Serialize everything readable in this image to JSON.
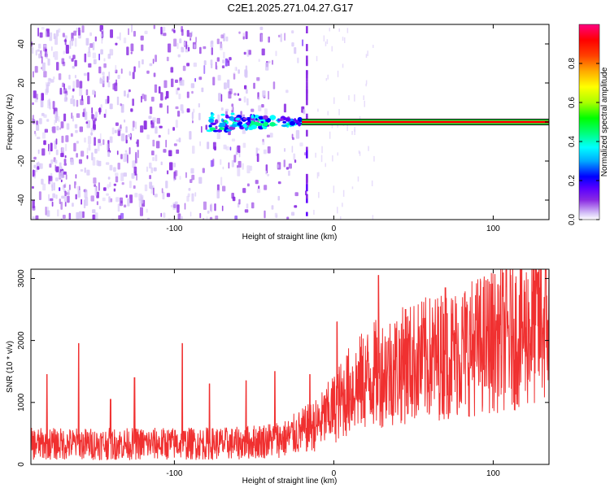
{
  "title": "C2E1.2025.271.04.27.G17",
  "chart_data": [
    {
      "type": "heatmap",
      "name": "spectrogram",
      "xlabel": "Height of straight line (km)",
      "ylabel": "Frequency (Hz)",
      "xlim": [
        -190,
        135
      ],
      "ylim": [
        -50,
        50
      ],
      "xticks": [
        -100,
        0,
        100
      ],
      "yticks": [
        -40,
        -20,
        0,
        20,
        40
      ],
      "colorbar": {
        "label": "Normalized spectral amplitude",
        "range": [
          0,
          1
        ],
        "ticks": [
          "0.0",
          "0.2",
          "0.4",
          "0.6",
          "0.8"
        ],
        "tick_values": [
          0.0,
          0.2,
          0.4,
          0.6,
          0.8
        ],
        "colors": [
          "#ffffff",
          "#d8c8f8",
          "#8a2be2",
          "#5a00ff",
          "#0000ff",
          "#00aaff",
          "#00ffff",
          "#00ff80",
          "#00ff00",
          "#aaff00",
          "#ffff00",
          "#ffaa00",
          "#ff4000",
          "#ff0000",
          "#ff0080"
        ]
      },
      "features": {
        "noise_region_x": [
          -190,
          -30
        ],
        "signal_line_frequency": 0,
        "signal_line_start_x": -20,
        "signal_line_end_x": 135,
        "signal_line_amplitude": 0.95,
        "signal_onset_x": -78,
        "noise_stripe_x": -17
      }
    },
    {
      "type": "line",
      "name": "snr",
      "xlabel": "Height of straight line (km)",
      "ylabel": "SNR (10 * v/v)",
      "xlim": [
        -190,
        135
      ],
      "ylim": [
        0,
        3150
      ],
      "xticks": [
        -100,
        0,
        100
      ],
      "yticks": [
        0,
        1000,
        2000,
        3000
      ],
      "color": "#f03030",
      "trend": [
        {
          "x": -190,
          "y": 330
        },
        {
          "x": -140,
          "y": 330
        },
        {
          "x": -60,
          "y": 340
        },
        {
          "x": -30,
          "y": 420
        },
        {
          "x": -10,
          "y": 650
        },
        {
          "x": 0,
          "y": 900
        },
        {
          "x": 10,
          "y": 1200
        },
        {
          "x": 25,
          "y": 1450
        },
        {
          "x": 50,
          "y": 1650
        },
        {
          "x": 75,
          "y": 1800
        },
        {
          "x": 100,
          "y": 2000
        },
        {
          "x": 120,
          "y": 2150
        },
        {
          "x": 135,
          "y": 2300
        }
      ],
      "spikes": [
        {
          "x": -180,
          "y": 1450
        },
        {
          "x": -160,
          "y": 1950
        },
        {
          "x": -140,
          "y": 1050
        },
        {
          "x": -125,
          "y": 1400
        },
        {
          "x": -95,
          "y": 1950
        },
        {
          "x": -78,
          "y": 1300
        },
        {
          "x": -55,
          "y": 1350
        },
        {
          "x": -37,
          "y": 1500
        },
        {
          "x": -15,
          "y": 1450
        },
        {
          "x": 2,
          "y": 2300
        },
        {
          "x": 28,
          "y": 3050
        },
        {
          "x": 45,
          "y": 2500
        },
        {
          "x": 70,
          "y": 2850
        },
        {
          "x": 103,
          "y": 2900
        },
        {
          "x": 128,
          "y": 3100
        }
      ]
    }
  ]
}
